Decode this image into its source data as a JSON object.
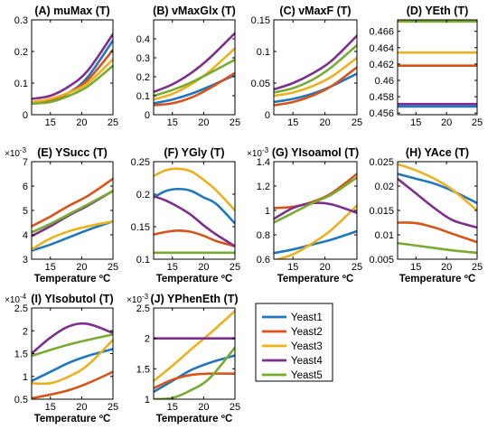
{
  "legend": [
    {
      "name": "Yeast1",
      "color": "#1f77c0"
    },
    {
      "name": "Yeast2",
      "color": "#d95319"
    },
    {
      "name": "Yeast3",
      "color": "#edb120"
    },
    {
      "name": "Yeast4",
      "color": "#7e2f8e"
    },
    {
      "name": "Yeast5",
      "color": "#77ac30"
    }
  ],
  "chart_data": [
    {
      "type": "line",
      "title": "(A) muMax (T)",
      "xlabel": "",
      "ylabel": "",
      "exponent": "",
      "xlim": [
        12,
        25
      ],
      "ylim": [
        0,
        0.3
      ],
      "xticks": [
        15,
        20,
        25
      ],
      "yticks": [
        0,
        0.1,
        0.2,
        0.3
      ],
      "yticklabels": [
        "0",
        "0.1",
        "0.2",
        "0.3"
      ],
      "x": [
        12,
        15,
        18,
        21,
        25
      ],
      "series": [
        {
          "name": "Yeast1",
          "values": [
            0.035,
            0.045,
            0.07,
            0.12,
            0.235
          ]
        },
        {
          "name": "Yeast2",
          "values": [
            0.04,
            0.048,
            0.07,
            0.11,
            0.205
          ]
        },
        {
          "name": "Yeast3",
          "values": [
            0.04,
            0.05,
            0.07,
            0.1,
            0.175
          ]
        },
        {
          "name": "Yeast4",
          "values": [
            0.05,
            0.06,
            0.09,
            0.14,
            0.255
          ]
        },
        {
          "name": "Yeast5",
          "values": [
            0.035,
            0.04,
            0.06,
            0.09,
            0.155
          ]
        }
      ]
    },
    {
      "type": "line",
      "title": "(B) vMaxGlx (T)",
      "xlabel": "",
      "ylabel": "",
      "exponent": "",
      "xlim": [
        12,
        25
      ],
      "ylim": [
        0,
        0.5
      ],
      "xticks": [
        15,
        20,
        25
      ],
      "yticks": [
        0,
        0.1,
        0.2,
        0.3,
        0.4
      ],
      "yticklabels": [
        "0",
        "0.1",
        "0.2",
        "0.3",
        "0.4"
      ],
      "x": [
        12,
        15,
        18,
        21,
        25
      ],
      "series": [
        {
          "name": "Yeast1",
          "values": [
            0.06,
            0.08,
            0.11,
            0.15,
            0.21
          ]
        },
        {
          "name": "Yeast2",
          "values": [
            0.05,
            0.06,
            0.09,
            0.14,
            0.22
          ]
        },
        {
          "name": "Yeast3",
          "values": [
            0.08,
            0.11,
            0.16,
            0.23,
            0.35
          ]
        },
        {
          "name": "Yeast4",
          "values": [
            0.12,
            0.16,
            0.22,
            0.3,
            0.43
          ]
        },
        {
          "name": "Yeast5",
          "values": [
            0.1,
            0.13,
            0.17,
            0.22,
            0.29
          ]
        }
      ]
    },
    {
      "type": "line",
      "title": "(C) vMaxF (T)",
      "xlabel": "",
      "ylabel": "",
      "exponent": "",
      "xlim": [
        12,
        25
      ],
      "ylim": [
        0,
        0.15
      ],
      "xticks": [
        15,
        20,
        25
      ],
      "yticks": [
        0,
        0.05,
        0.1,
        0.15
      ],
      "yticklabels": [
        "0",
        "0.05",
        "0.1",
        "0.15"
      ],
      "x": [
        12,
        15,
        18,
        21,
        25
      ],
      "series": [
        {
          "name": "Yeast1",
          "values": [
            0.02,
            0.025,
            0.033,
            0.045,
            0.065
          ]
        },
        {
          "name": "Yeast2",
          "values": [
            0.015,
            0.02,
            0.03,
            0.045,
            0.075
          ]
        },
        {
          "name": "Yeast3",
          "values": [
            0.03,
            0.035,
            0.045,
            0.06,
            0.09
          ]
        },
        {
          "name": "Yeast4",
          "values": [
            0.04,
            0.05,
            0.065,
            0.085,
            0.125
          ]
        },
        {
          "name": "Yeast5",
          "values": [
            0.035,
            0.042,
            0.055,
            0.075,
            0.11
          ]
        }
      ]
    },
    {
      "type": "line",
      "title": "(D) YEth (T)",
      "xlabel": "",
      "ylabel": "",
      "exponent": "",
      "xlim": [
        12,
        25
      ],
      "ylim": [
        0.4558,
        0.4674
      ],
      "xticks": [
        15,
        20,
        25
      ],
      "yticks": [
        0.456,
        0.458,
        0.46,
        0.462,
        0.464,
        0.466
      ],
      "yticklabels": [
        "0.456",
        "0.458",
        "0.46",
        "0.462",
        "0.464",
        "0.466"
      ],
      "x": [
        12,
        25
      ],
      "series": [
        {
          "name": "Yeast1",
          "values": [
            0.4568,
            0.4568
          ]
        },
        {
          "name": "Yeast2",
          "values": [
            0.4618,
            0.4618
          ]
        },
        {
          "name": "Yeast3",
          "values": [
            0.4634,
            0.4634
          ]
        },
        {
          "name": "Yeast4",
          "values": [
            0.4571,
            0.4571
          ]
        },
        {
          "name": "Yeast5",
          "values": [
            0.4672,
            0.4672
          ]
        }
      ]
    },
    {
      "type": "line",
      "title": "(E) YSucc (T)",
      "xlabel": "Temperature ºC",
      "ylabel": "",
      "exponent": "×10-3",
      "xlim": [
        12,
        25
      ],
      "ylim": [
        3,
        7
      ],
      "xticks": [
        15,
        20,
        25
      ],
      "yticks": [
        3,
        4,
        5,
        6,
        7
      ],
      "yticklabels": [
        "3",
        "4",
        "5",
        "6",
        "7"
      ],
      "x": [
        12,
        15,
        18,
        21,
        25
      ],
      "series": [
        {
          "name": "Yeast1",
          "values": [
            3.35,
            3.6,
            3.9,
            4.2,
            4.55
          ]
        },
        {
          "name": "Yeast2",
          "values": [
            4.35,
            4.75,
            5.2,
            5.6,
            6.3
          ]
        },
        {
          "name": "Yeast3",
          "values": [
            3.4,
            3.85,
            4.15,
            4.35,
            4.55
          ]
        },
        {
          "name": "Yeast4",
          "values": [
            3.95,
            4.35,
            4.8,
            5.2,
            5.8
          ]
        },
        {
          "name": "Yeast5",
          "values": [
            4.1,
            4.45,
            4.85,
            5.25,
            5.8
          ]
        }
      ]
    },
    {
      "type": "line",
      "title": "(F) YGly (T)",
      "xlabel": "Temperature ºC",
      "ylabel": "",
      "exponent": "",
      "xlim": [
        12,
        25
      ],
      "ylim": [
        0.1,
        0.25
      ],
      "xticks": [
        15,
        20,
        25
      ],
      "yticks": [
        0.1,
        0.15,
        0.2,
        0.25
      ],
      "yticklabels": [
        "0.1",
        "0.15",
        "0.2",
        "0.25"
      ],
      "x": [
        12,
        14,
        16,
        18,
        20,
        22,
        25
      ],
      "series": [
        {
          "name": "Yeast1",
          "values": [
            0.195,
            0.205,
            0.208,
            0.205,
            0.195,
            0.185,
            0.155
          ]
        },
        {
          "name": "Yeast2",
          "values": [
            0.138,
            0.142,
            0.144,
            0.142,
            0.136,
            0.128,
            0.12
          ]
        },
        {
          "name": "Yeast3",
          "values": [
            0.228,
            0.237,
            0.239,
            0.235,
            0.222,
            0.206,
            0.175
          ]
        },
        {
          "name": "Yeast4",
          "values": [
            0.197,
            0.19,
            0.18,
            0.168,
            0.152,
            0.138,
            0.12
          ]
        },
        {
          "name": "Yeast5",
          "values": [
            0.11,
            0.11,
            0.11,
            0.11,
            0.11,
            0.11,
            0.11
          ]
        }
      ]
    },
    {
      "type": "line",
      "title": "(G) YIsoamol (T)",
      "xlabel": "Temperature ºC",
      "ylabel": "",
      "exponent": "×10-3",
      "xlim": [
        12,
        25
      ],
      "ylim": [
        0.6,
        1.4
      ],
      "xticks": [
        15,
        20,
        25
      ],
      "yticks": [
        0.6,
        0.8,
        1,
        1.2,
        1.4
      ],
      "yticklabels": [
        "0.6",
        "0.8",
        "1",
        "1.2",
        "1.4"
      ],
      "x": [
        12,
        15,
        18,
        21,
        25
      ],
      "series": [
        {
          "name": "Yeast1",
          "values": [
            0.65,
            0.68,
            0.72,
            0.76,
            0.83
          ]
        },
        {
          "name": "Yeast2",
          "values": [
            1.02,
            1.03,
            1.07,
            1.14,
            1.3
          ]
        },
        {
          "name": "Yeast3",
          "values": [
            0.59,
            0.64,
            0.73,
            0.84,
            1.04
          ]
        },
        {
          "name": "Yeast4",
          "values": [
            0.93,
            1.02,
            1.06,
            1.05,
            0.98
          ]
        },
        {
          "name": "Yeast5",
          "values": [
            0.9,
            0.98,
            1.06,
            1.13,
            1.27
          ]
        }
      ]
    },
    {
      "type": "line",
      "title": "(H) YAce (T)",
      "xlabel": "Temperature ºC",
      "ylabel": "",
      "exponent": "",
      "xlim": [
        12,
        25
      ],
      "ylim": [
        0.005,
        0.025
      ],
      "xticks": [
        15,
        20,
        25
      ],
      "yticks": [
        0.005,
        0.01,
        0.015,
        0.02,
        0.025
      ],
      "yticklabels": [
        "0.005",
        "0.01",
        "0.015",
        "0.02",
        "0.025"
      ],
      "x": [
        12,
        15,
        18,
        21,
        25
      ],
      "series": [
        {
          "name": "Yeast1",
          "values": [
            0.0225,
            0.0215,
            0.0205,
            0.019,
            0.0165
          ]
        },
        {
          "name": "Yeast2",
          "values": [
            0.0125,
            0.0124,
            0.0115,
            0.0102,
            0.0085
          ]
        },
        {
          "name": "Yeast3",
          "values": [
            0.0245,
            0.0232,
            0.0215,
            0.0192,
            0.015
          ]
        },
        {
          "name": "Yeast4",
          "values": [
            0.0215,
            0.0185,
            0.0155,
            0.013,
            0.0115
          ]
        },
        {
          "name": "Yeast5",
          "values": [
            0.0083,
            0.0078,
            0.0073,
            0.0068,
            0.0063
          ]
        }
      ]
    },
    {
      "type": "line",
      "title": "(I) YIsobutol (T)",
      "xlabel": "Temperature ºC",
      "ylabel": "",
      "exponent": "×10-4",
      "xlim": [
        12,
        25
      ],
      "ylim": [
        0.5,
        2.5
      ],
      "xticks": [
        15,
        20,
        25
      ],
      "yticks": [
        0.5,
        1,
        1.5,
        2,
        2.5
      ],
      "yticklabels": [
        "0.5",
        "1",
        "1.5",
        "2",
        "2.5"
      ],
      "x": [
        12,
        15,
        18,
        21,
        25
      ],
      "series": [
        {
          "name": "Yeast1",
          "values": [
            0.9,
            1.1,
            1.3,
            1.45,
            1.6
          ]
        },
        {
          "name": "Yeast2",
          "values": [
            0.52,
            0.6,
            0.7,
            0.85,
            1.1
          ]
        },
        {
          "name": "Yeast3",
          "values": [
            0.85,
            0.85,
            1.0,
            1.25,
            1.8
          ]
        },
        {
          "name": "Yeast4",
          "values": [
            1.5,
            1.85,
            2.1,
            2.15,
            1.95
          ]
        },
        {
          "name": "Yeast5",
          "values": [
            1.45,
            1.58,
            1.7,
            1.8,
            1.92
          ]
        }
      ]
    },
    {
      "type": "line",
      "title": "(J) YPhenEth (T)",
      "xlabel": "Temperature ºC",
      "ylabel": "",
      "exponent": "×10-3",
      "xlim": [
        12,
        25
      ],
      "ylim": [
        1,
        2.5
      ],
      "xticks": [
        15,
        20,
        25
      ],
      "yticks": [
        1,
        1.5,
        2,
        2.5
      ],
      "yticklabels": [
        "1",
        "1.5",
        "2",
        "2.5"
      ],
      "x": [
        12,
        15,
        18,
        21,
        25
      ],
      "series": [
        {
          "name": "Yeast1",
          "values": [
            1.12,
            1.3,
            1.48,
            1.6,
            1.72
          ]
        },
        {
          "name": "Yeast2",
          "values": [
            1.18,
            1.32,
            1.4,
            1.42,
            1.42
          ]
        },
        {
          "name": "Yeast3",
          "values": [
            1.3,
            1.55,
            1.82,
            2.08,
            2.45
          ]
        },
        {
          "name": "Yeast4",
          "values": [
            2.0,
            2.0,
            2.0,
            2.0,
            2.0
          ]
        },
        {
          "name": "Yeast5",
          "values": [
            1.0,
            1.02,
            1.15,
            1.35,
            1.85
          ]
        }
      ]
    }
  ]
}
